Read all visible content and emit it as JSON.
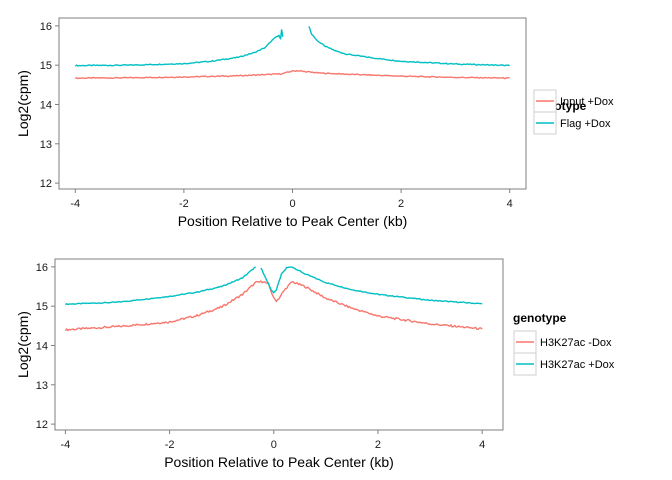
{
  "colors": {
    "series1": "#F8766D",
    "series2": "#00BFC4"
  },
  "chart_data": [
    {
      "type": "line",
      "title": "",
      "xlabel": "Position Relative to Peak Center (kb)",
      "ylabel": "Log2(cpm)",
      "xlim": [
        -4.3,
        4.3
      ],
      "ylim": [
        11.85,
        16.2
      ],
      "xticks": [
        -4,
        -2,
        0,
        2,
        4
      ],
      "xtick_labels": [
        "-4",
        "-2",
        "0",
        "2",
        "4"
      ],
      "yticks": [
        12,
        13,
        14,
        15,
        16
      ],
      "ytick_labels": [
        "12",
        "13",
        "14",
        "15",
        "16"
      ],
      "grid": false,
      "legend": {
        "title": "genotype",
        "position": "right"
      },
      "series": [
        {
          "name": "Input +Dox",
          "color": "#F8766D",
          "x": [
            -4.0,
            -3.0,
            -2.0,
            -1.0,
            -0.5,
            -0.2,
            0.0,
            0.1,
            0.2,
            0.5,
            1.0,
            2.0,
            3.0,
            4.0
          ],
          "y": [
            14.67,
            14.68,
            14.7,
            14.73,
            14.76,
            14.78,
            14.85,
            14.86,
            14.84,
            14.8,
            14.77,
            14.72,
            14.69,
            14.67
          ]
        },
        {
          "name": "Flag +Dox",
          "color": "#00BFC4",
          "x": [
            -4.0,
            -3.0,
            -2.0,
            -1.5,
            -1.0,
            -0.7,
            -0.5,
            -0.4,
            -0.3,
            -0.25,
            -0.22,
            -0.2,
            -0.18,
            null,
            0.3,
            0.35,
            0.45,
            0.6,
            0.8,
            1.0,
            1.5,
            2.0,
            3.0,
            4.0
          ],
          "y": [
            14.99,
            15.0,
            15.04,
            15.1,
            15.2,
            15.32,
            15.45,
            15.6,
            15.72,
            15.75,
            15.68,
            15.9,
            15.72,
            null,
            16.0,
            15.8,
            15.63,
            15.48,
            15.36,
            15.28,
            15.18,
            15.1,
            15.03,
            14.99
          ]
        }
      ]
    },
    {
      "type": "line",
      "title": "",
      "xlabel": "Position Relative to Peak Center (kb)",
      "ylabel": "Log2(cpm)",
      "xlim": [
        -4.2,
        4.4
      ],
      "ylim": [
        11.85,
        16.2
      ],
      "xticks": [
        -4,
        -2,
        0,
        2,
        4
      ],
      "xtick_labels": [
        "-4",
        "-2",
        "0",
        "2",
        "4"
      ],
      "yticks": [
        12,
        13,
        14,
        15,
        16
      ],
      "ytick_labels": [
        "12",
        "13",
        "14",
        "15",
        "16"
      ],
      "grid": false,
      "legend": {
        "title": "genotype",
        "position": "right"
      },
      "series": [
        {
          "name": "H3K27ac -Dox",
          "color": "#F8766D",
          "x": [
            -4.0,
            -3.0,
            -2.0,
            -1.5,
            -1.0,
            -0.6,
            -0.35,
            -0.2,
            -0.1,
            0.0,
            0.05,
            0.1,
            0.2,
            0.35,
            0.6,
            1.0,
            1.5,
            2.0,
            3.0,
            4.0
          ],
          "y": [
            14.4,
            14.48,
            14.6,
            14.75,
            14.98,
            15.3,
            15.6,
            15.63,
            15.55,
            15.2,
            15.14,
            15.2,
            15.4,
            15.62,
            15.5,
            15.2,
            14.95,
            14.75,
            14.55,
            14.42
          ],
          "noisy": true
        },
        {
          "name": "H3K27ac +Dox",
          "color": "#00BFC4",
          "x": [
            -4.0,
            -3.0,
            -2.0,
            -1.5,
            -1.0,
            -0.6,
            -0.35,
            null,
            -0.25,
            -0.15,
            -0.05,
            0.0,
            0.05,
            0.15,
            0.25,
            0.35,
            0.6,
            1.0,
            1.5,
            2.0,
            3.0,
            4.0
          ],
          "y": [
            15.05,
            15.1,
            15.25,
            15.35,
            15.5,
            15.72,
            16.0,
            null,
            15.98,
            15.7,
            15.42,
            15.33,
            15.42,
            15.82,
            15.98,
            16.0,
            15.82,
            15.6,
            15.42,
            15.3,
            15.15,
            15.06
          ]
        }
      ]
    }
  ]
}
